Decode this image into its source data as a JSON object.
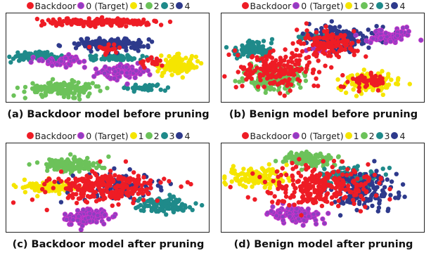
{
  "colors": {
    "Backdoor": "#ee1c25",
    "0 (Target)": "#8e3fc0",
    "0 (Target) edge": "#cc33cc",
    "1": "#f5e500",
    "2": "#6cc25a",
    "3": "#1f8a8a",
    "4": "#2e3a8c"
  },
  "chart_data": [
    {
      "type": "scatter",
      "caption": "(a) Backdoor model before pruning",
      "legend": [
        "Backdoor",
        "0 (Target)",
        "1",
        "2",
        "3",
        "4"
      ],
      "xlim": [
        0,
        100
      ],
      "ylim": [
        0,
        100
      ],
      "grid": false,
      "legend_position": "top-center",
      "series": [
        {
          "name": "Backdoor",
          "clusters": [
            {
              "cx": 48,
              "cy": 90,
              "sx": 24,
              "sy": 4,
              "n": 160
            },
            {
              "cx": 50,
              "cy": 60,
              "sx": 6,
              "sy": 4,
              "n": 20
            },
            {
              "cx": 72,
              "cy": 45,
              "sx": 6,
              "sy": 5,
              "n": 20
            }
          ]
        },
        {
          "name": "0 (Target)",
          "clusters": [
            {
              "cx": 58,
              "cy": 35,
              "sx": 12,
              "sy": 8,
              "n": 100
            },
            {
              "cx": 28,
              "cy": 46,
              "sx": 9,
              "sy": 5,
              "n": 55
            }
          ]
        },
        {
          "name": "1",
          "clusters": [
            {
              "cx": 85,
              "cy": 42,
              "sx": 8,
              "sy": 10,
              "n": 110
            }
          ]
        },
        {
          "name": "2",
          "clusters": [
            {
              "cx": 28,
              "cy": 15,
              "sx": 17,
              "sy": 7,
              "n": 160
            }
          ]
        },
        {
          "name": "3",
          "clusters": [
            {
              "cx": 14,
              "cy": 51,
              "sx": 11,
              "sy": 4,
              "n": 100
            },
            {
              "cx": 55,
              "cy": 50,
              "sx": 14,
              "sy": 3,
              "n": 70
            },
            {
              "cx": 68,
              "cy": 16,
              "sx": 10,
              "sy": 3,
              "n": 40
            }
          ]
        },
        {
          "name": "4",
          "clusters": [
            {
              "cx": 50,
              "cy": 65,
              "sx": 17,
              "sy": 6,
              "n": 180
            }
          ]
        }
      ]
    },
    {
      "type": "scatter",
      "caption": "(b) Benign model before pruning",
      "legend": [
        "Backdoor",
        "0 (Target)",
        "1",
        "2",
        "3",
        "4"
      ],
      "xlim": [
        0,
        100
      ],
      "ylim": [
        0,
        100
      ],
      "grid": false,
      "legend_position": "top-center",
      "series": [
        {
          "name": "Backdoor",
          "clusters": [
            {
              "cx": 28,
              "cy": 35,
              "sx": 18,
              "sy": 18,
              "n": 180
            },
            {
              "cx": 52,
              "cy": 65,
              "sx": 14,
              "sy": 15,
              "n": 120
            },
            {
              "cx": 72,
              "cy": 22,
              "sx": 9,
              "sy": 9,
              "n": 50
            }
          ]
        },
        {
          "name": "0 (Target)",
          "clusters": [
            {
              "cx": 83,
              "cy": 75,
              "sx": 9,
              "sy": 7,
              "n": 80
            },
            {
              "cx": 48,
              "cy": 60,
              "sx": 5,
              "sy": 4,
              "n": 15
            }
          ]
        },
        {
          "name": "1",
          "clusters": [
            {
              "cx": 74,
              "cy": 22,
              "sx": 11,
              "sy": 10,
              "n": 130
            }
          ]
        },
        {
          "name": "2",
          "clusters": [
            {
              "cx": 26,
              "cy": 27,
              "sx": 12,
              "sy": 13,
              "n": 170
            }
          ]
        },
        {
          "name": "3",
          "clusters": [
            {
              "cx": 15,
              "cy": 60,
              "sx": 9,
              "sy": 8,
              "n": 100
            },
            {
              "cx": 45,
              "cy": 74,
              "sx": 8,
              "sy": 5,
              "n": 30
            }
          ]
        },
        {
          "name": "4",
          "clusters": [
            {
              "cx": 58,
              "cy": 72,
              "sx": 13,
              "sy": 14,
              "n": 150
            },
            {
              "cx": 80,
              "cy": 74,
              "sx": 6,
              "sy": 6,
              "n": 40
            }
          ]
        }
      ]
    },
    {
      "type": "scatter",
      "caption": "(c) Backdoor model after pruning",
      "legend": [
        "Backdoor",
        "0 (Target)",
        "1",
        "2",
        "3",
        "4"
      ],
      "xlim": [
        0,
        100
      ],
      "ylim": [
        0,
        100
      ],
      "grid": false,
      "legend_position": "top-center",
      "series": [
        {
          "name": "Backdoor",
          "clusters": [
            {
              "cx": 50,
              "cy": 50,
              "sx": 25,
              "sy": 16,
              "n": 260
            }
          ]
        },
        {
          "name": "0 (Target)",
          "clusters": [
            {
              "cx": 40,
              "cy": 17,
              "sx": 10,
              "sy": 8,
              "n": 110
            }
          ]
        },
        {
          "name": "1",
          "clusters": [
            {
              "cx": 22,
              "cy": 50,
              "sx": 12,
              "sy": 6,
              "n": 120
            }
          ]
        },
        {
          "name": "2",
          "clusters": [
            {
              "cx": 32,
              "cy": 76,
              "sx": 14,
              "sy": 7,
              "n": 140
            }
          ]
        },
        {
          "name": "3",
          "clusters": [
            {
              "cx": 78,
              "cy": 30,
              "sx": 12,
              "sy": 8,
              "n": 120
            }
          ]
        },
        {
          "name": "4",
          "clusters": [
            {
              "cx": 55,
              "cy": 50,
              "sx": 18,
              "sy": 14,
              "n": 120
            }
          ]
        }
      ]
    },
    {
      "type": "scatter",
      "caption": "(d) Benign model after pruning",
      "legend": [
        "Backdoor",
        "0 (Target)",
        "1",
        "2",
        "3",
        "4"
      ],
      "xlim": [
        0,
        100
      ],
      "ylim": [
        0,
        100
      ],
      "grid": false,
      "legend_position": "top-center",
      "series": [
        {
          "name": "Backdoor",
          "clusters": [
            {
              "cx": 50,
              "cy": 52,
              "sx": 26,
              "sy": 22,
              "n": 260
            }
          ]
        },
        {
          "name": "0 (Target)",
          "clusters": [
            {
              "cx": 36,
              "cy": 20,
              "sx": 11,
              "sy": 8,
              "n": 120
            }
          ]
        },
        {
          "name": "1",
          "clusters": [
            {
              "cx": 17,
              "cy": 62,
              "sx": 13,
              "sy": 9,
              "n": 130
            }
          ]
        },
        {
          "name": "2",
          "clusters": [
            {
              "cx": 43,
              "cy": 82,
              "sx": 11,
              "sy": 8,
              "n": 120
            }
          ]
        },
        {
          "name": "3",
          "clusters": [
            {
              "cx": 62,
              "cy": 62,
              "sx": 13,
              "sy": 10,
              "n": 110
            }
          ]
        },
        {
          "name": "4",
          "clusters": [
            {
              "cx": 70,
              "cy": 48,
              "sx": 16,
              "sy": 20,
              "n": 160
            }
          ]
        }
      ]
    }
  ]
}
